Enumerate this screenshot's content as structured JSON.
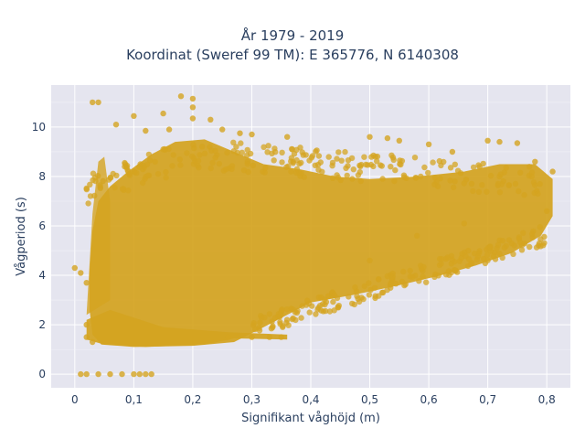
{
  "chart_data": {
    "type": "scatter",
    "title_line1": "År 1979 - 2019",
    "title_line2": "Koordinat (Sweref 99 TM): E 365776, N 6140308",
    "xlabel": "Signifikant våghöjd (m)",
    "ylabel": "Vågperiod (s)",
    "xlim": [
      -0.04,
      0.84
    ],
    "ylim": [
      -0.55,
      11.7
    ],
    "x_ticks": [
      0,
      0.1,
      0.2,
      0.3,
      0.4,
      0.5,
      0.6,
      0.7,
      0.8
    ],
    "x_tick_labels": [
      "0",
      "0,1",
      "0,2",
      "0,3",
      "0,4",
      "0,5",
      "0,6",
      "0,7",
      "0,8"
    ],
    "y_ticks": [
      0,
      2,
      4,
      6,
      8,
      10
    ],
    "y_tick_labels": [
      "0",
      "2",
      "4",
      "6",
      "8",
      "10"
    ],
    "grid": true,
    "marker_color": "#D4A420",
    "plot_background": "#E5E5EF",
    "series": [
      {
        "points": [
          [
            0.03,
            11.0
          ],
          [
            0.04,
            11.0
          ],
          [
            0.18,
            11.25
          ],
          [
            0.2,
            11.15
          ],
          [
            0.2,
            10.8
          ],
          [
            0.15,
            10.55
          ],
          [
            0.1,
            10.45
          ],
          [
            0.2,
            10.35
          ],
          [
            0.23,
            10.3
          ],
          [
            0.07,
            10.1
          ],
          [
            0.12,
            9.85
          ],
          [
            0.16,
            9.9
          ],
          [
            0.25,
            9.9
          ],
          [
            0.28,
            9.75
          ],
          [
            0.3,
            9.7
          ],
          [
            0.36,
            9.6
          ],
          [
            0.5,
            9.6
          ],
          [
            0.53,
            9.55
          ],
          [
            0.55,
            9.45
          ],
          [
            0.6,
            9.3
          ],
          [
            0.7,
            9.45
          ],
          [
            0.72,
            9.4
          ],
          [
            0.75,
            9.35
          ],
          [
            0.64,
            9.0
          ],
          [
            0.78,
            8.6
          ],
          [
            0.81,
            8.2
          ],
          [
            0.8,
            6.6
          ],
          [
            0.0,
            4.3
          ],
          [
            0.01,
            4.1
          ],
          [
            0.02,
            3.7
          ],
          [
            0.02,
            2.0
          ],
          [
            0.02,
            1.5
          ],
          [
            0.03,
            1.3
          ],
          [
            0.01,
            0.0
          ],
          [
            0.02,
            0.0
          ],
          [
            0.04,
            0.0
          ],
          [
            0.06,
            0.0
          ],
          [
            0.08,
            0.0
          ],
          [
            0.1,
            0.0
          ],
          [
            0.11,
            0.0
          ],
          [
            0.12,
            0.0
          ],
          [
            0.13,
            0.0
          ],
          [
            0.3,
            1.5
          ],
          [
            0.35,
            1.5
          ],
          [
            0.26,
            1.5
          ],
          [
            0.33,
            1.5
          ],
          [
            0.5,
            4.6
          ],
          [
            0.58,
            5.6
          ],
          [
            0.66,
            6.1
          ],
          [
            0.44,
            3.2
          ]
        ]
      }
    ]
  }
}
